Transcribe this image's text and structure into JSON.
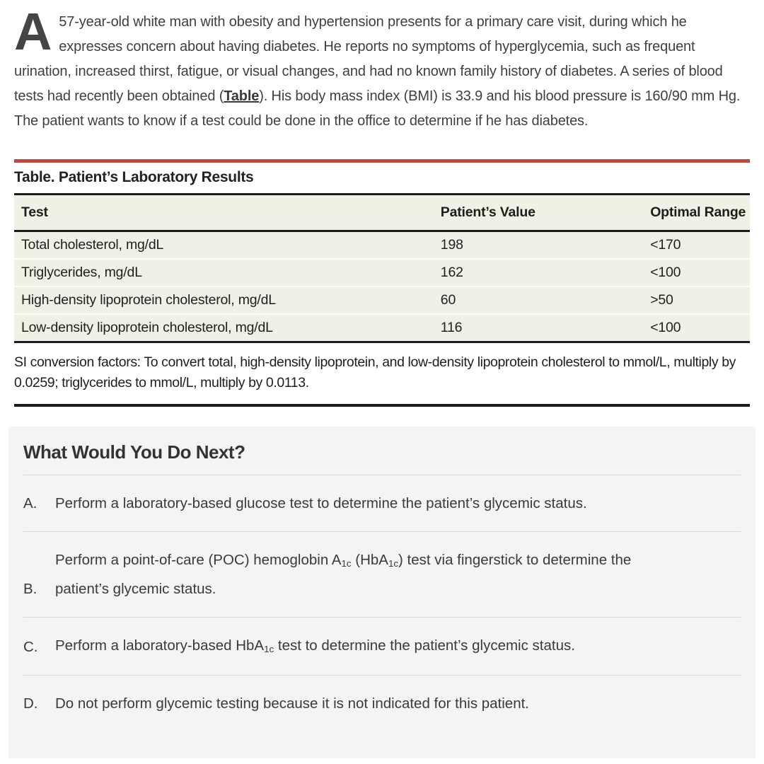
{
  "intro": {
    "drop_cap": "A",
    "text_before_link": "57-year-old white man with obesity and hypertension presents for a primary care visit, during which he expresses concern about having diabetes. He reports no symptoms of hyperglycemia, such as frequent urination, increased thirst, fatigue, or visual changes, and had no known family history of diabetes. A series of blood tests had recently been obtained (",
    "link_text": "Table",
    "text_after_link": "). His body mass index (BMI) is 33.9 and his blood pressure is 160/90 mm Hg. The patient wants to know if a test could be done in the office to determine if he has diabetes."
  },
  "table": {
    "title": "Table. Patient’s Laboratory Results",
    "columns": [
      "Test",
      "Patient’s Value",
      "Optimal Range"
    ],
    "rows": [
      [
        "Total cholesterol, mg/dL",
        "198",
        "<170"
      ],
      [
        "Triglycerides, mg/dL",
        "162",
        "<100"
      ],
      [
        "High-density lipoprotein cholesterol, mg/dL",
        "60",
        ">50"
      ],
      [
        "Low-density lipoprotein cholesterol, mg/dL",
        "116",
        "<100"
      ]
    ],
    "footnote": "SI conversion factors: To convert total, high-density lipoprotein, and low-density lipoprotein cholesterol to mmol/L, multiply by 0.0259; triglycerides to mmol/L, multiply by 0.0113."
  },
  "quiz": {
    "heading": "What Would You Do Next?",
    "options": [
      {
        "label": "A.",
        "segments": [
          {
            "text": "Perform a laboratory-based glucose test to determine the patient’s glycemic status."
          }
        ]
      },
      {
        "label": "B.",
        "segments": [
          {
            "text": "Perform a point-of-care (POC) hemoglobin A"
          },
          {
            "text": "1c",
            "sub": true
          },
          {
            "text": " (HbA"
          },
          {
            "text": "1c",
            "sub": true
          },
          {
            "text": ") test via fingerstick to determine the patient’s glycemic status."
          }
        ]
      },
      {
        "label": "C.",
        "segments": [
          {
            "text": "Perform a laboratory-based HbA"
          },
          {
            "text": "1c",
            "sub": true
          },
          {
            "text": " test to determine the patient’s glycemic status."
          }
        ]
      },
      {
        "label": "D.",
        "segments": [
          {
            "text": "Do not perform glycemic testing because it is not indicated for this patient."
          }
        ]
      }
    ]
  },
  "colors": {
    "accent_red": "#cf4037",
    "table_row_bg": "#f1f0e7",
    "quiz_bg": "#f4f4f3"
  }
}
